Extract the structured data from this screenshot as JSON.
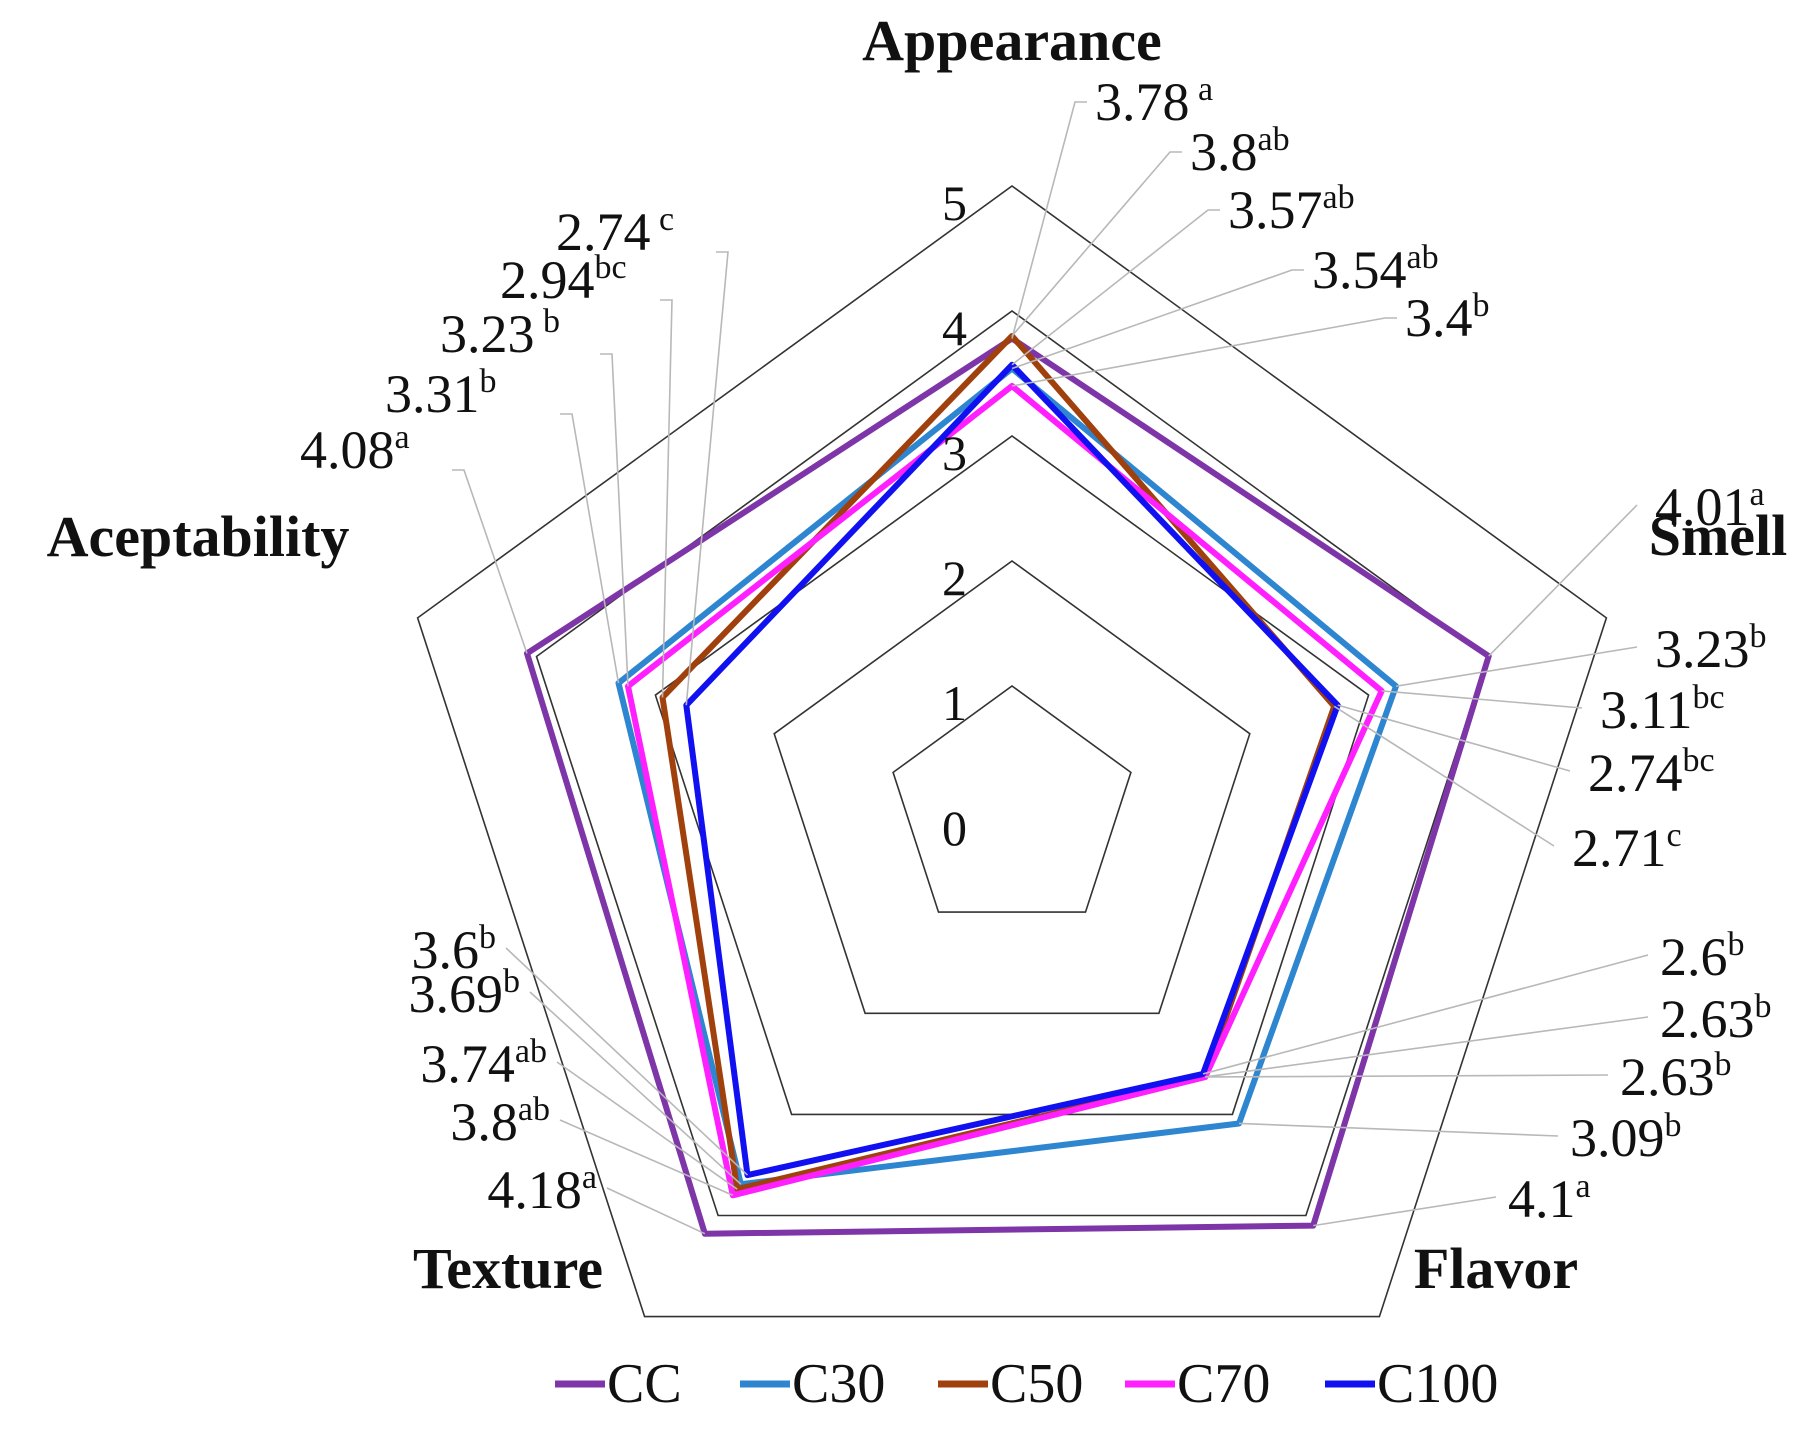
{
  "chart_data": {
    "type": "radar",
    "categories": [
      "Appearance",
      "Smell",
      "Flavor",
      "Texture",
      "Aceptability"
    ],
    "ticks": [
      "0",
      "1",
      "2",
      "3",
      "4",
      "5"
    ],
    "rlim": [
      0,
      5
    ],
    "legend_placement": "bottom",
    "series": [
      {
        "name": "CC",
        "color": "#7E35A8",
        "values": [
          3.78,
          4.01,
          4.1,
          4.18,
          4.08
        ]
      },
      {
        "name": "C30",
        "color": "#2E86D0",
        "values": [
          3.54,
          3.23,
          3.09,
          3.69,
          3.31
        ]
      },
      {
        "name": "C50",
        "color": "#A0410D",
        "values": [
          3.8,
          2.71,
          2.63,
          3.74,
          2.94
        ]
      },
      {
        "name": "C70",
        "color": "#FF1FFF",
        "values": [
          3.4,
          3.11,
          2.63,
          3.8,
          3.23
        ]
      },
      {
        "name": "C100",
        "color": "#1010F0",
        "values": [
          3.57,
          2.74,
          2.6,
          3.6,
          2.74
        ]
      }
    ],
    "annotations": {
      "appearance": [
        {
          "v": "3.78",
          "s": " a"
        },
        {
          "v": "3.8",
          "s": "ab"
        },
        {
          "v": "3.57",
          "s": "ab"
        },
        {
          "v": "3.54",
          "s": "ab"
        },
        {
          "v": "3.4",
          "s": "b"
        }
      ],
      "smell": [
        {
          "v": "4.01",
          "s": "a"
        },
        {
          "v": "3.23",
          "s": "b"
        },
        {
          "v": "3.11",
          "s": "bc"
        },
        {
          "v": "2.74",
          "s": "bc"
        },
        {
          "v": "2.71",
          "s": "c"
        }
      ],
      "flavor": [
        {
          "v": "2.6",
          "s": "b"
        },
        {
          "v": "2.63",
          "s": "b"
        },
        {
          "v": "2.63",
          "s": "b"
        },
        {
          "v": "3.09",
          "s": "b"
        },
        {
          "v": "4.1",
          "s": "a"
        }
      ],
      "texture": [
        {
          "v": "3.6",
          "s": "b"
        },
        {
          "v": "3.69",
          "s": "b"
        },
        {
          "v": "3.74",
          "s": "ab"
        },
        {
          "v": "3.8",
          "s": "ab"
        },
        {
          "v": "4.18",
          "s": "a"
        }
      ],
      "aceptability": [
        {
          "v": "2.74",
          "s": " c"
        },
        {
          "v": "2.94",
          "s": "bc"
        },
        {
          "v": "3.23",
          "s": " b"
        },
        {
          "v": "3.31",
          "s": "b"
        },
        {
          "v": "4.08",
          "s": "a"
        }
      ]
    }
  }
}
